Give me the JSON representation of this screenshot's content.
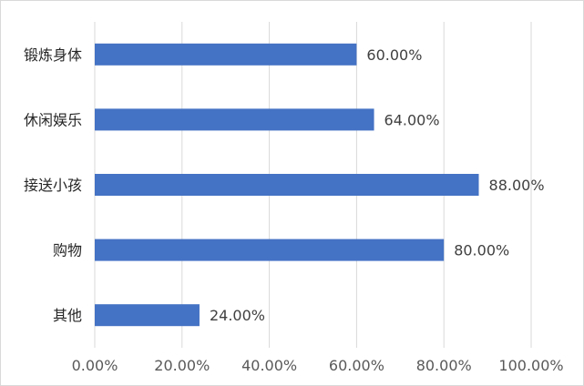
{
  "chart_data": {
    "type": "bar",
    "orientation": "horizontal",
    "categories": [
      "锻炼身体",
      "休闲娱乐",
      "接送小孩",
      "购物",
      "其他"
    ],
    "values": [
      60.0,
      64.0,
      88.0,
      80.0,
      24.0
    ],
    "value_labels": [
      "60.00%",
      "64.00%",
      "88.00%",
      "80.00%",
      "24.00%"
    ],
    "x_ticks": [
      "0.00%",
      "20.00%",
      "40.00%",
      "60.00%",
      "80.00%",
      "100.00%"
    ],
    "xlim": [
      0,
      100
    ],
    "grid": "vertical",
    "legend": "none",
    "title": "",
    "xlabel": "",
    "ylabel": "",
    "bar_color": "#4472c4",
    "grid_color": "#d9d9d9"
  }
}
